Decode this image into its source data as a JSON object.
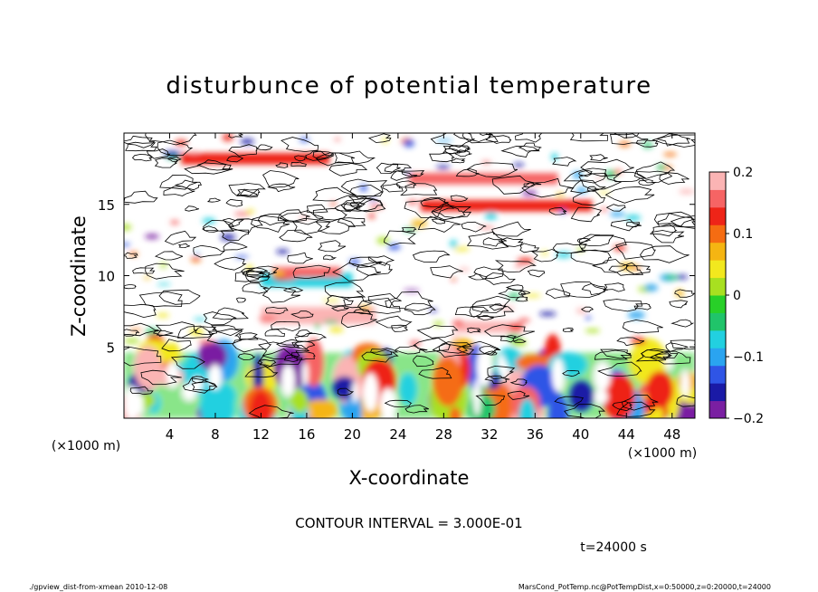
{
  "chart_data": {
    "type": "heatmap",
    "title": "disturbunce of potential temperature",
    "xlabel": "X-coordinate",
    "ylabel": "Z-coordinate",
    "x_unit_label": "(×1000 m)",
    "z_unit_label": "(×1000 m)",
    "xlim": [
      0,
      50
    ],
    "ylim": [
      0,
      20
    ],
    "x_ticks": [
      "4",
      "8",
      "12",
      "16",
      "20",
      "24",
      "28",
      "32",
      "36",
      "40",
      "44",
      "48"
    ],
    "y_ticks": [
      "5",
      "10",
      "15"
    ],
    "colorbar": {
      "range": [
        -0.2,
        0.2
      ],
      "tick_labels": [
        "0.2",
        "0.1",
        "0",
        "−0.1",
        "−0.2"
      ],
      "colors": [
        "#7a1fa2",
        "#1a1aa6",
        "#2f55e6",
        "#2aa4f0",
        "#22d0e0",
        "#20c46a",
        "#28d028",
        "#a8e020",
        "#f2e81e",
        "#f5b512",
        "#f56c12",
        "#ee2418",
        "#f66464",
        "#fbb4b4"
      ]
    },
    "contour_interval": "CONTOUR INTERVAL = 3.000E-01",
    "time_label": "t=24000 s",
    "footer_left": "./gpview_dist-from-xmean  2010-12-08",
    "footer_right": "MarsCond_PotTemp.nc@PotTempDist,x=0:50000,z=0:20000,t=24000",
    "grid": false
  }
}
